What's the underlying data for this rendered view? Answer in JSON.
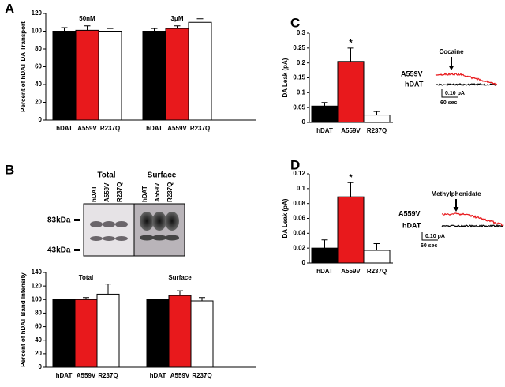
{
  "chart_data": [
    {
      "type": "bar",
      "panel": "A",
      "ylabel": "Percent of hDAT DA Transport",
      "groups": [
        "50nM",
        "3μM"
      ],
      "series": [
        {
          "name": "hDAT",
          "color": "#000000",
          "values": [
            100,
            100
          ],
          "errors": [
            4,
            3
          ]
        },
        {
          "name": "A559V",
          "color": "#e8191c",
          "values": [
            101,
            103
          ],
          "errors": [
            5,
            3
          ]
        },
        {
          "name": "R237Q",
          "color": "#ffffff",
          "values": [
            100,
            110
          ],
          "errors": [
            3,
            4
          ]
        }
      ],
      "ylim": [
        0,
        120
      ],
      "yticks": [
        0,
        20,
        40,
        60,
        80,
        100,
        120
      ]
    },
    {
      "type": "bar",
      "ylabel": "Percent of hDAT Band Intensity",
      "groups": [
        "Total",
        "Surface"
      ],
      "series": [
        {
          "name": "hDAT",
          "color": "#000000",
          "values": [
            100,
            100
          ],
          "errors": [
            0,
            0
          ]
        },
        {
          "name": "A559V",
          "color": "#e8191c",
          "values": [
            100,
            106
          ],
          "errors": [
            3,
            7
          ]
        },
        {
          "name": "R237Q",
          "color": "#ffffff",
          "values": [
            108,
            98
          ],
          "errors": [
            15,
            5
          ]
        }
      ],
      "ylim": [
        0,
        140
      ],
      "yticks": [
        0,
        20,
        40,
        60,
        80,
        100,
        120,
        140
      ]
    },
    {
      "type": "bar",
      "panel": "C",
      "ylabel": "DA Leak (pA)",
      "categories": [
        "hDAT",
        "A559V",
        "R237Q"
      ],
      "values": [
        0.055,
        0.205,
        0.025
      ],
      "errors": [
        0.012,
        0.045,
        0.012
      ],
      "colors": [
        "#000000",
        "#e8191c",
        "#ffffff"
      ],
      "significance": "*",
      "ylim": [
        0,
        0.3
      ],
      "yticks": [
        0,
        0.05,
        0.1,
        0.15,
        0.2,
        0.25,
        0.3
      ],
      "inset": {
        "drug": "Cocaine",
        "traces": [
          "A559V",
          "hDAT"
        ],
        "scale_y": "0.10 pA",
        "scale_x": "60 sec"
      }
    },
    {
      "type": "bar",
      "panel": "D",
      "ylabel": "DA Leak (pA)",
      "categories": [
        "hDAT",
        "A559V",
        "R237Q"
      ],
      "values": [
        0.02,
        0.089,
        0.017
      ],
      "errors": [
        0.011,
        0.019,
        0.009
      ],
      "colors": [
        "#000000",
        "#e8191c",
        "#ffffff"
      ],
      "significance": "*",
      "ylim": [
        0,
        0.12
      ],
      "yticks": [
        0,
        0.02,
        0.04,
        0.06,
        0.08,
        0.1,
        0.12
      ],
      "inset": {
        "drug": "Methylphenidate",
        "traces": [
          "A559V",
          "hDAT"
        ],
        "scale_y": "0.10 pA",
        "scale_x": "60 sec"
      }
    }
  ],
  "blot": {
    "panel": "B",
    "columns": [
      "Total",
      "Surface"
    ],
    "lanes": [
      "hDAT",
      "A559V",
      "R237Q",
      "hDAT",
      "A559V",
      "R237Q"
    ],
    "markers": [
      "83kDa",
      "43kDa"
    ]
  }
}
